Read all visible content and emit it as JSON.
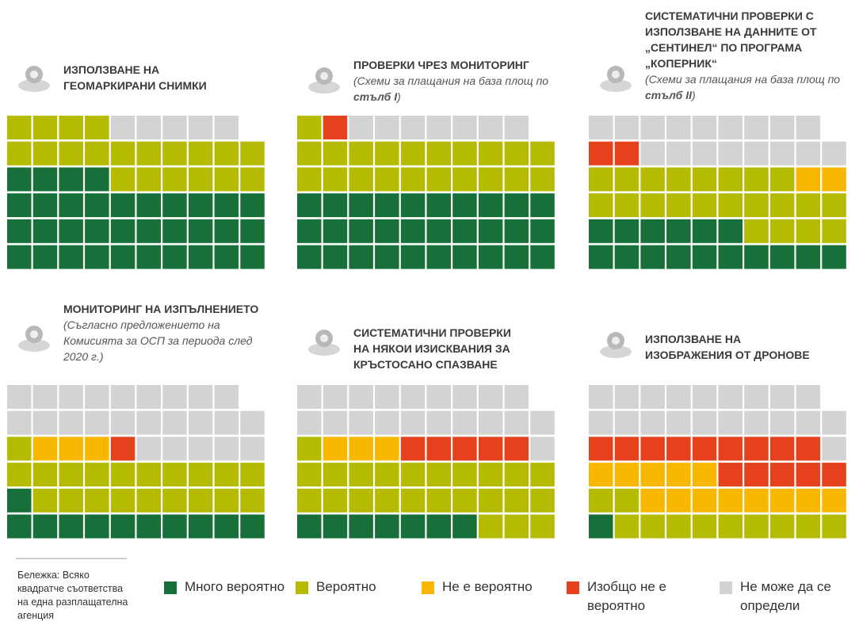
{
  "chart_data": {
    "type": "waffle",
    "categories": [
      "Много вероятно",
      "Вероятно",
      "Не е вероятно",
      "Изобщо не е вероятно",
      "Не може да се определи"
    ],
    "colors": [
      "#17703a",
      "#b4bb00",
      "#f9b700",
      "#e5411c",
      "#d3d3d3"
    ],
    "panels": [
      {
        "title_lines": [
          "ИЗПОЛЗВАНЕ НА",
          "ГЕОМАРКИРАНИ СНИМКИ"
        ],
        "values": [
          34,
          20,
          0,
          0,
          5
        ]
      },
      {
        "title_lines": [
          "ПРОВЕРКИ ЧРЕЗ МОНИТОРИНГ"
        ],
        "subtitle": "(Схеми за плащания на база площ по ",
        "subtitle_emphasis": "стълб I",
        "subtitle_end": ")",
        "values": [
          30,
          21,
          0,
          1,
          7
        ]
      },
      {
        "title_lines": [
          "СИСТЕМАТИЧНИ ПРОВЕРКИ С",
          "ИЗПОЛЗВАНЕ НА ДАННИТЕ ОТ",
          "„СЕНТИНЕЛ“ ПО ПРОГРАМА",
          "„КОПЕРНИК“"
        ],
        "subtitle": "(Схеми за плащания на база площ по ",
        "subtitle_emphasis": "стълб II",
        "subtitle_end": ")",
        "values": [
          16,
          22,
          2,
          2,
          17
        ]
      },
      {
        "title_lines": [
          "МОНИТОРИНГ НА ИЗПЪЛНЕНИЕТО"
        ],
        "subtitle": "(Съгласно предложението на Комисията за ОСП за периода след 2020 г.)",
        "values": [
          11,
          20,
          3,
          1,
          24
        ]
      },
      {
        "title_lines": [
          "СИСТЕМАТИЧНИ ПРОВЕРКИ",
          "НА НЯКОИ ИЗИСКВАНИЯ ЗА",
          "КРЪСТОСАНО СПАЗВАНЕ"
        ],
        "values": [
          7,
          24,
          3,
          5,
          20
        ]
      },
      {
        "title_lines": [
          "ИЗПОЛЗВАНЕ НА",
          "ИЗОБРАЖЕНИЯ ОТ ДРОНОВЕ"
        ],
        "values": [
          1,
          11,
          13,
          14,
          20
        ]
      }
    ],
    "note_lines": [
      "Бележка: Всяко",
      "квадратче съответства",
      "на една разплащателна",
      "агенция"
    ]
  }
}
